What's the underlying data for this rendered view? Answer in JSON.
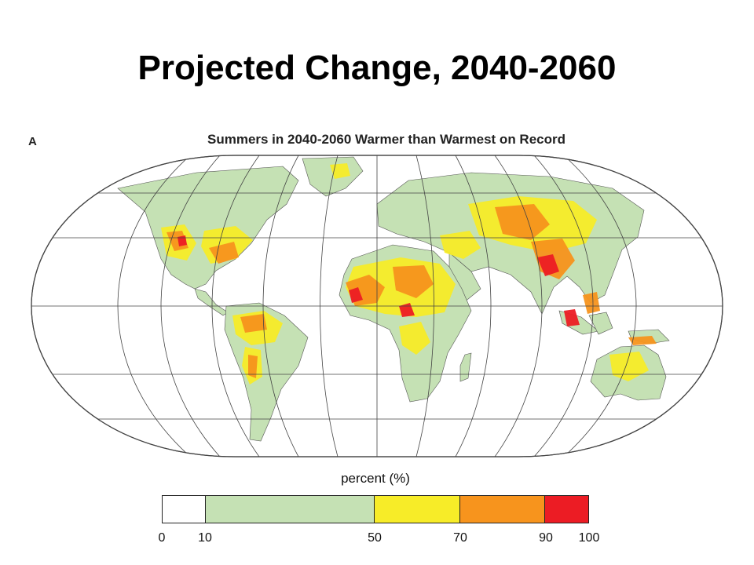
{
  "slide": {
    "title": "Projected Change, 2040-2060"
  },
  "map": {
    "panel_letter": "A",
    "title": "Summers in 2040-2060 Warmer than Warmest on Record",
    "projection": "Robinson-style world map",
    "ocean_color": "#ffffff",
    "land_base_color": "#c5e1b4"
  },
  "legend": {
    "title": "percent (%)",
    "classes": [
      {
        "from": 0,
        "to": 10,
        "color": "#ffffff"
      },
      {
        "from": 10,
        "to": 50,
        "color": "#c5e1b4"
      },
      {
        "from": 50,
        "to": 70,
        "color": "#f7ec28"
      },
      {
        "from": 70,
        "to": 90,
        "color": "#f7941d"
      },
      {
        "from": 90,
        "to": 100,
        "color": "#ec1c24"
      }
    ],
    "tick_labels": [
      "0",
      "10",
      "50",
      "70",
      "90",
      "100"
    ]
  }
}
